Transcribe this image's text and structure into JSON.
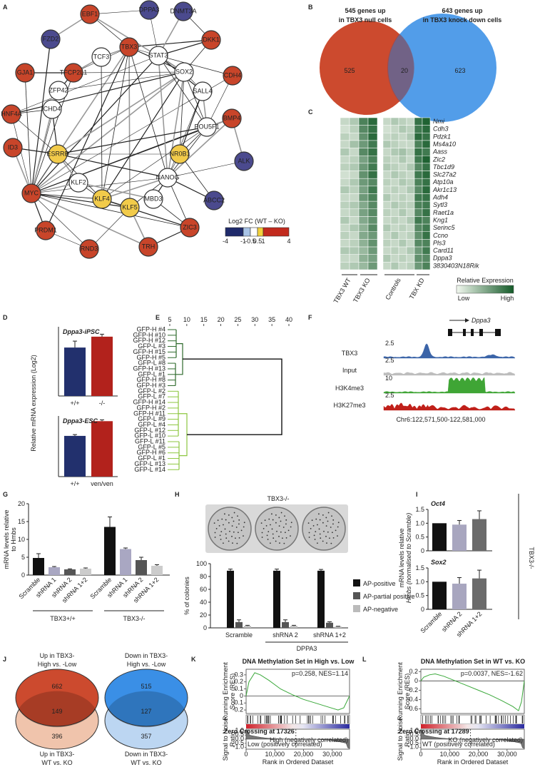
{
  "panels": [
    {
      "letter": "A",
      "nodes": [
        {
          "label": "DPPA3",
          "color": "#4b4a8e"
        },
        {
          "label": "DNMT3A",
          "color": "#4b4a8e"
        },
        {
          "label": "EBF1",
          "color": "#c8452a"
        },
        {
          "label": "FZD2",
          "color": "#4b4a8e"
        },
        {
          "label": "TBX3",
          "color": "#c8452a"
        },
        {
          "label": "DKK1",
          "color": "#c8452a"
        },
        {
          "label": "TCF3",
          "color": "#ffffff"
        },
        {
          "label": "STAT3",
          "color": "#ffffff"
        },
        {
          "label": "GJA1",
          "color": "#c8452a"
        },
        {
          "label": "TFCP2L1",
          "color": "#c8452a"
        },
        {
          "label": "SOX2",
          "color": "#ffffff"
        },
        {
          "label": "CDH4",
          "color": "#c8452a"
        },
        {
          "label": "ZFP42",
          "color": "#ffffff"
        },
        {
          "label": "SALL4",
          "color": "#ffffff"
        },
        {
          "label": "HNF4A",
          "color": "#c8452a"
        },
        {
          "label": "CHD4",
          "color": "#ffffff"
        },
        {
          "label": "POU5F1",
          "color": "#ffffff"
        },
        {
          "label": "BMP4",
          "color": "#c8452a"
        },
        {
          "label": "ID3",
          "color": "#c8452a"
        },
        {
          "label": "ESRRB",
          "color": "#f2cb4a"
        },
        {
          "label": "NR0B1",
          "color": "#f2cb4a"
        },
        {
          "label": "ALK",
          "color": "#4b4a8e"
        },
        {
          "label": "NANOG",
          "color": "#ffffff"
        },
        {
          "label": "KLF2",
          "color": "#ffffff"
        },
        {
          "label": "MYC",
          "color": "#c8452a"
        },
        {
          "label": "KLF4",
          "color": "#f2cb4a"
        },
        {
          "label": "KLF5",
          "color": "#f2cb4a"
        },
        {
          "label": "MBD3",
          "color": "#ffffff"
        },
        {
          "label": "ABCC2",
          "color": "#4b4a8e"
        },
        {
          "label": "PRDM1",
          "color": "#c8452a"
        },
        {
          "label": "ZIC3",
          "color": "#c8452a"
        },
        {
          "label": "RND3",
          "color": "#c8452a"
        },
        {
          "label": "TRH",
          "color": "#c8452a"
        }
      ],
      "legend": {
        "title": "Log2 FC (WT – KO)",
        "colors": [
          "#1f2a6b",
          "#a8c3e6",
          "#ffffff",
          "#f3d23c",
          "#c22a1d"
        ],
        "ticks": [
          -4,
          -1,
          -0.5,
          0.5,
          1,
          4
        ]
      }
    },
    {
      "letter": "B",
      "left_label": [
        "545 genes up",
        "in TBX3 null cells"
      ],
      "right_label": [
        "643 genes up",
        "in TBX3 knock down cells"
      ],
      "left_only": 525,
      "overlap": 20,
      "right_only": 623,
      "left_color": "#cc4a2e",
      "right_color": "#3a8fe6"
    },
    {
      "letter": "C",
      "genes": [
        "Nmi",
        "Cdh3",
        "Pdzk1",
        "Ms4a10",
        "Aass",
        "Zic2",
        "Tbc1d9",
        "Slc27a2",
        "Atp10a",
        "Akr1c13",
        "Adh4",
        "Sytl3",
        "Raet1a",
        "Kng1",
        "Serinc5",
        "Ccno",
        "Pls3",
        "Card11",
        "Dppa3",
        "3830403N18Rik"
      ],
      "groups": [
        "TBX3 WT",
        "TBX3 KO",
        "Controls",
        "TBX KD"
      ],
      "values": [
        [
          0.2,
          0.3,
          0.75,
          0.9,
          0.2,
          0.3,
          0.25,
          0.2,
          0.85,
          0.95
        ],
        [
          0.15,
          0.25,
          0.7,
          0.85,
          0.15,
          0.2,
          0.3,
          0.25,
          0.8,
          0.9
        ],
        [
          0.25,
          0.2,
          0.65,
          0.9,
          0.2,
          0.25,
          0.2,
          0.3,
          0.9,
          0.85
        ],
        [
          0.2,
          0.35,
          0.6,
          0.8,
          0.3,
          0.25,
          0.2,
          0.2,
          0.75,
          0.9
        ],
        [
          0.3,
          0.2,
          0.7,
          0.85,
          0.2,
          0.3,
          0.35,
          0.25,
          0.85,
          0.8
        ],
        [
          0.2,
          0.25,
          0.55,
          0.75,
          0.25,
          0.2,
          0.3,
          0.2,
          0.8,
          0.95
        ],
        [
          0.25,
          0.3,
          0.6,
          0.8,
          0.3,
          0.25,
          0.2,
          0.3,
          0.7,
          0.85
        ],
        [
          0.15,
          0.2,
          0.65,
          0.85,
          0.2,
          0.3,
          0.25,
          0.2,
          0.8,
          0.9
        ],
        [
          0.2,
          0.3,
          0.6,
          0.7,
          0.25,
          0.2,
          0.3,
          0.25,
          0.75,
          0.85
        ],
        [
          0.3,
          0.25,
          0.55,
          0.8,
          0.2,
          0.25,
          0.2,
          0.3,
          0.7,
          0.9
        ],
        [
          0.2,
          0.2,
          0.6,
          0.75,
          0.3,
          0.2,
          0.25,
          0.2,
          0.8,
          0.85
        ],
        [
          0.25,
          0.3,
          0.5,
          0.7,
          0.2,
          0.3,
          0.25,
          0.25,
          0.75,
          0.8
        ],
        [
          0.2,
          0.25,
          0.55,
          0.7,
          0.25,
          0.2,
          0.3,
          0.2,
          0.7,
          0.85
        ],
        [
          0.3,
          0.2,
          0.5,
          0.65,
          0.2,
          0.25,
          0.2,
          0.3,
          0.8,
          0.75
        ],
        [
          0.2,
          0.3,
          0.45,
          0.7,
          0.3,
          0.2,
          0.25,
          0.2,
          0.7,
          0.8
        ],
        [
          0.25,
          0.2,
          0.5,
          0.6,
          0.2,
          0.3,
          0.2,
          0.25,
          0.65,
          0.85
        ],
        [
          0.2,
          0.25,
          0.45,
          0.65,
          0.25,
          0.2,
          0.3,
          0.2,
          0.7,
          0.75
        ],
        [
          0.3,
          0.3,
          0.4,
          0.6,
          0.2,
          0.25,
          0.2,
          0.3,
          0.6,
          0.8
        ],
        [
          0.2,
          0.2,
          0.45,
          0.55,
          0.3,
          0.2,
          0.25,
          0.2,
          0.65,
          0.7
        ],
        [
          0.25,
          0.3,
          0.4,
          0.6,
          0.2,
          0.3,
          0.2,
          0.25,
          0.6,
          0.75
        ]
      ],
      "low_color": "#f2f8ef",
      "high_color": "#145a28",
      "legend": {
        "title": "Relative Expression",
        "low": "Low",
        "high": "High"
      }
    },
    {
      "letter": "D",
      "y_label": "Relative mRNA expression (Log2)",
      "ylim": [
        0,
        14
      ],
      "charts": [
        {
          "title": "Dppa3-iPSC",
          "categories": [
            "+/+",
            "-/-"
          ],
          "values": [
            9.8,
            12
          ],
          "errors": [
            1.3,
            0.5
          ],
          "colors": [
            "#22306d",
            "#b2221c"
          ]
        },
        {
          "title": "Dppa3-ESC",
          "categories": [
            "+/+",
            "ven/ven"
          ],
          "values": [
            9.4,
            12.8
          ],
          "errors": [
            0.3,
            0.3
          ],
          "colors": [
            "#22306d",
            "#b2221c"
          ]
        }
      ]
    },
    {
      "letter": "E",
      "xticks": [
        5,
        10,
        15,
        20,
        25,
        30,
        35,
        40
      ],
      "leaves": [
        "GFP-H #4",
        "GFP-H #10",
        "GFP-H #12",
        "GFP-L #3",
        "GFP-H #15",
        "GFP-H #5",
        "GFP-L #8",
        "GFP-H #13",
        "GFP-L #1",
        "GFP-H #8",
        "GFP-H #3",
        "GFP-L #2",
        "GFP-L #7",
        "GFP-H #14",
        "GFP-H #2",
        "GFP-H #11",
        "GFP-L #9",
        "GFP-L #4",
        "GFP-L #12",
        "GFP-L #10",
        "GFP-L #11",
        "GFP-L #5",
        "GFP-H #6",
        "GFP-L #1",
        "GFP-L #13",
        "GFP-L #14"
      ],
      "colors": [
        "#2e6a2c",
        "#8cc63f"
      ]
    },
    {
      "letter": "F",
      "gene": "Dppa3",
      "tracks": [
        {
          "name": "TBX3",
          "scale": 2.5,
          "color": "#3b64a8"
        },
        {
          "name": "Input",
          "scale": 2.5,
          "color": "#bdbdbd"
        },
        {
          "name": "H3K4me3",
          "scale": 10,
          "color": "#3fa535"
        },
        {
          "name": "H3K27me3",
          "scale": 2.5,
          "color": "#c0201a"
        }
      ],
      "coordinates": "Chr6:122,571,500-122,581,000"
    },
    {
      "letter": "G",
      "y_label": [
        "mRNA levels relative",
        "to Hmbs"
      ],
      "ylim": [
        0,
        20
      ],
      "yticks": [
        0,
        5,
        10,
        15,
        20
      ],
      "categories": [
        "Scramble",
        "shRNA 1",
        "shRNA 2",
        "shRNA 1+2"
      ],
      "colors": [
        "#111111",
        "#a9a7c2",
        "#555555",
        "#cccccc"
      ],
      "groups": [
        {
          "name": "TBX3+/+",
          "values": [
            4.8,
            2.2,
            1.6,
            1.8
          ],
          "errors": [
            1.2,
            0.2,
            0.15,
            0.2
          ]
        },
        {
          "name": "TBX3-/-",
          "values": [
            13.5,
            7.3,
            4.2,
            2.6
          ],
          "errors": [
            2.8,
            0.3,
            0.8,
            0.3
          ]
        }
      ]
    },
    {
      "letter": "H",
      "title": "TBX3-/-",
      "y_label": "% of colonies",
      "ylim": [
        0,
        100
      ],
      "yticks": [
        0,
        20,
        40,
        60,
        80,
        100
      ],
      "categories": [
        "Scramble",
        "shRNA 2",
        "shRNA 1+2"
      ],
      "bracket": "DPPA3",
      "series": [
        {
          "name": "AP-positive",
          "color": "#111111",
          "values": [
            89,
            89,
            89
          ],
          "errors": [
            2.5,
            2.5,
            2
          ]
        },
        {
          "name": "AP-partial positive",
          "color": "#555555",
          "values": [
            9,
            9,
            8
          ],
          "errors": [
            3.5,
            3.5,
            1.5
          ]
        },
        {
          "name": "AP-negative",
          "color": "#bbbbbb",
          "values": [
            3,
            3,
            2
          ],
          "errors": [
            1,
            1,
            0.5
          ]
        }
      ]
    },
    {
      "letter": "I",
      "y_label": [
        "mRNA levels relative",
        "Hmbs (normalised to Scramble)"
      ],
      "side_label": "TBX3-/-",
      "ylim": [
        0,
        1.5
      ],
      "yticks": [
        0,
        0.5,
        {
          "value": 1,
          "label": "1.0"
        },
        1.5
      ],
      "categories": [
        "Scramble",
        "shRNA 2",
        "shRNA 1+2"
      ],
      "colors": [
        "#111111",
        "#a8a6bf",
        "#6b6b6b"
      ],
      "charts": [
        {
          "title": "Oct4",
          "values": [
            1,
            0.95,
            1.15
          ],
          "errors": [
            null,
            0.15,
            0.3
          ]
        },
        {
          "title": "Sox2",
          "values": [
            1,
            0.93,
            1.12
          ],
          "errors": [
            null,
            0.22,
            0.3
          ]
        }
      ]
    },
    {
      "letter": "J",
      "venns": [
        {
          "top_label": [
            "Up in TBX3-",
            "High vs. -Low"
          ],
          "bottom_label": [
            "Up in TBX3-",
            "WT vs. KO"
          ],
          "top_only": 662,
          "overlap": 149,
          "bottom_only": 396,
          "top_color": "#cc4a2e",
          "bottom_color": "#f0c4ac"
        },
        {
          "top_label": [
            "Down in TBX3-",
            "High vs. -Low"
          ],
          "bottom_label": [
            "Down in TBX3-",
            "WT vs. KO"
          ],
          "top_only": 515,
          "overlap": 127,
          "bottom_only": 357,
          "top_color": "#3a8fe6",
          "bottom_color": "#bcd6f2"
        }
      ]
    },
    {
      "letter": "K",
      "title": "DNA Methylation Set in High vs. Low",
      "stats": "p=0.258, NES=1.14",
      "y_label": [
        "Running Enrichment",
        "Score (RES)"
      ],
      "ylim": [
        -0.25,
        0.38
      ],
      "yticks": [
        0.3,
        0.2,
        0.1,
        0,
        -0.1,
        -0.2
      ],
      "x": [
        0,
        1000,
        3000,
        5000,
        8000,
        12000,
        16000,
        20000,
        24000,
        28000,
        32000,
        34000,
        36000
      ],
      "values": [
        0,
        0.2,
        0.33,
        0.3,
        0.22,
        0.1,
        0.02,
        -0.05,
        -0.1,
        -0.15,
        -0.2,
        -0.17,
        0
      ],
      "color": "#3aa83a",
      "signal_label": [
        "Signal to Noise",
        "Ratio"
      ],
      "signal_ylim": [
        -1.2,
        1.2
      ],
      "signal_yticks": [
        {
          "value": 1,
          "label": "1.0"
        },
        0.5,
        {
          "value": 0,
          "label": "0.0"
        },
        -0.5,
        {
          "value": -1,
          "label": "-1.0"
        }
      ],
      "zero_crossing": {
        "value": 17326,
        "label": "Zero Crossing at 17326"
      },
      "high_label": "High (negatively correlated)",
      "low_label": "Low (positively correlated)",
      "xlim": [
        0,
        36000
      ],
      "xticks": [
        0,
        {
          "value": 10000,
          "label": "10,000"
        },
        {
          "value": 20000,
          "label": "20,000"
        },
        {
          "value": 30000,
          "label": "30,000"
        }
      ],
      "x_label": "Rank in Ordered Dataset"
    },
    {
      "letter": "L",
      "title": "DNA Methylation Set in WT vs. KO",
      "stats": "p=0.0037, NES=-1.62",
      "y_label": [
        "Running Enrichment",
        "Score (RES)"
      ],
      "ylim": [
        -0.7,
        0.25
      ],
      "yticks": [
        0.2,
        0,
        -0.2,
        -0.4,
        -0.6
      ],
      "x": [
        0,
        1000,
        3000,
        5000,
        8000,
        12000,
        16000,
        20000,
        24000,
        28000,
        32000,
        34000,
        35000,
        36000
      ],
      "values": [
        0,
        0.08,
        0.13,
        0.15,
        0.1,
        0.0,
        -0.1,
        -0.2,
        -0.3,
        -0.42,
        -0.55,
        -0.64,
        -0.45,
        0
      ],
      "color": "#3aa83a",
      "signal_label": [
        "Signal to Noise",
        "Ratio"
      ],
      "signal_ylim": [
        -1.2,
        1.2
      ],
      "signal_yticks": [
        {
          "value": 1,
          "label": "1.0"
        },
        0.5,
        {
          "value": 0,
          "label": "0.0"
        },
        -0.5,
        {
          "value": -1,
          "label": "-1.0"
        }
      ],
      "zero_crossing": {
        "value": 17289,
        "label": "Zero Crossing at 17289"
      },
      "high_label": "KO (negatively correlated)",
      "low_label": "WT (positively correlated)",
      "xlim": [
        0,
        36000
      ],
      "xticks": [
        0,
        {
          "value": 10000,
          "label": "10,000"
        },
        {
          "value": 20000,
          "label": "20,000"
        },
        {
          "value": 30000,
          "label": "30,000"
        }
      ],
      "x_label": "Rank in Ordered Dataset"
    }
  ]
}
